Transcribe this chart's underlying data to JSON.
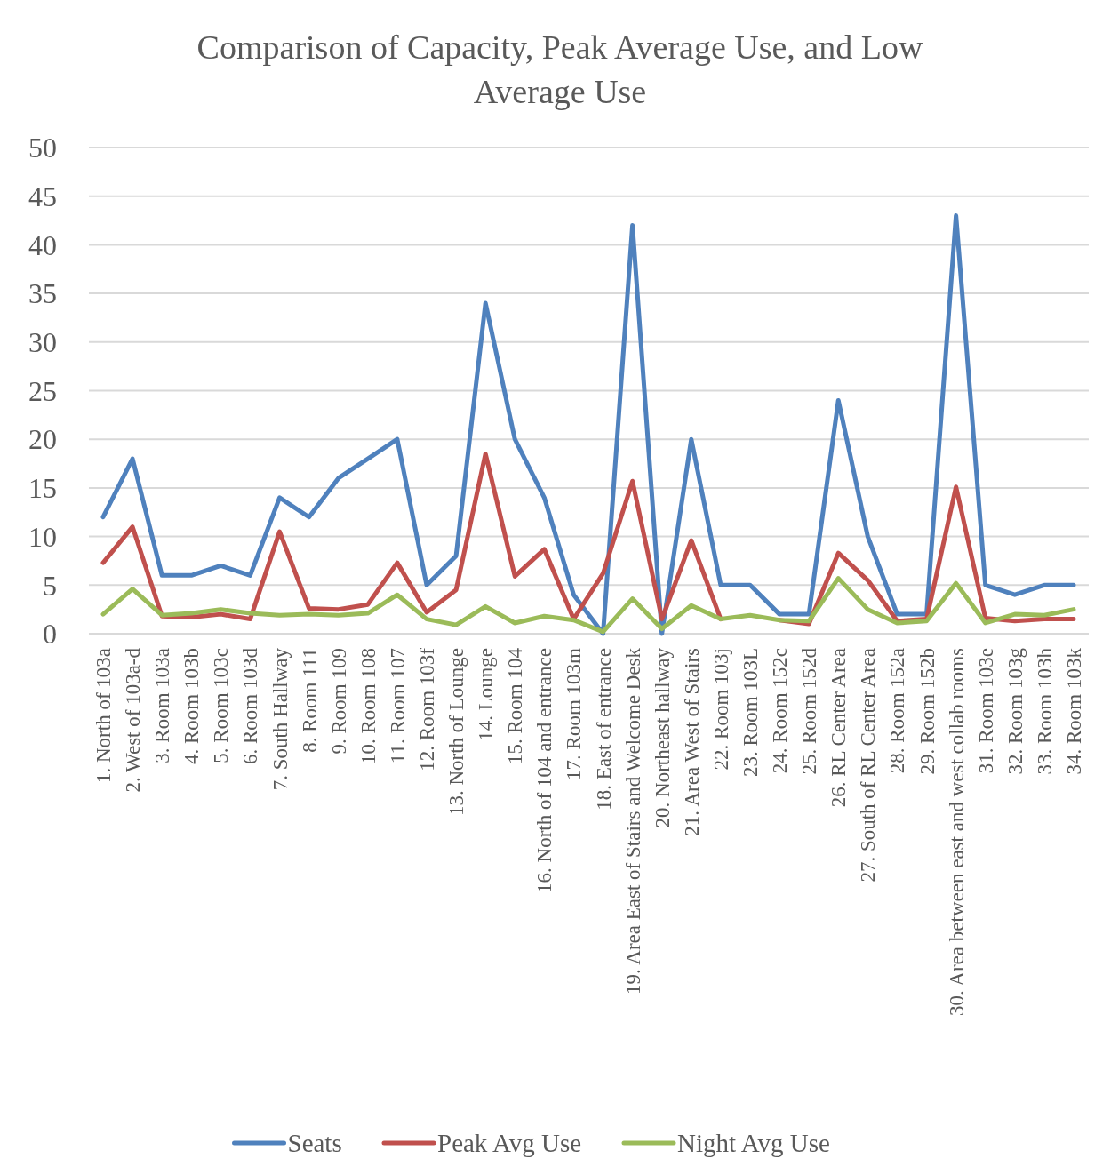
{
  "chart_data": {
    "type": "line",
    "title": "Comparison of Capacity, Peak Average Use, and Low Average Use",
    "categories": [
      "1. North of 103a",
      "2. West of 103a-d",
      "3. Room 103a",
      "4. Room 103b",
      "5. Room 103c",
      "6. Room 103d",
      "7. South Hallway",
      "8. Room 111",
      "9. Room 109",
      "10. Room 108",
      "11. Room 107",
      "12. Room 103f",
      "13. North of Lounge",
      "14. Lounge",
      "15. Room 104",
      "16. North of 104 and entrance",
      "17. Room 103m",
      "18. East of entrance",
      "19. Area East of Stairs and Welcome Desk",
      "20. Northeast hallway",
      "21. Area West of Stairs",
      "22. Room 103j",
      "23. Room 103L",
      "24. Room 152c",
      "25. Room 152d",
      "26. RL Center Area",
      "27. South of RL Center Area",
      "28. Room 152a",
      "29. Room 152b",
      "30. Area between east and west collab rooms",
      "31. Room 103e",
      "32. Room 103g",
      "33. Room 103h",
      "34. Room 103k"
    ],
    "series": [
      {
        "name": "Seats",
        "color": "#4f81bd",
        "values": [
          12,
          18,
          6,
          6,
          7,
          6,
          14,
          12,
          16,
          18,
          20,
          5,
          8,
          34,
          20,
          14,
          4,
          0,
          42,
          0,
          20,
          5,
          5,
          2,
          2,
          24,
          10,
          2,
          2,
          43,
          5,
          4,
          5,
          5
        ]
      },
      {
        "name": "Peak Avg Use",
        "color": "#c0504d",
        "values": [
          7.3,
          11,
          1.8,
          1.7,
          2.0,
          1.5,
          10.5,
          2.6,
          2.5,
          3.0,
          7.3,
          2.2,
          4.5,
          18.5,
          5.9,
          8.7,
          1.5,
          6.2,
          15.7,
          1.5,
          9.6,
          1.5,
          null,
          1.4,
          1.0,
          8.3,
          5.5,
          1.3,
          1.5,
          15.1,
          1.6,
          1.3,
          1.5,
          1.5
        ]
      },
      {
        "name": "Night Avg Use",
        "color": "#9bbb59",
        "values": [
          2.0,
          4.6,
          1.9,
          2.1,
          2.5,
          2.1,
          1.9,
          2.0,
          1.9,
          2.1,
          4.0,
          1.5,
          0.9,
          2.8,
          1.1,
          1.8,
          1.4,
          0.2,
          3.6,
          0.5,
          2.9,
          1.5,
          1.9,
          1.4,
          1.3,
          5.7,
          2.5,
          1.1,
          1.3,
          5.2,
          1.1,
          2.0,
          1.9,
          2.5
        ]
      }
    ],
    "ylim": [
      0,
      50
    ],
    "yticks": [
      0,
      5,
      10,
      15,
      20,
      25,
      30,
      35,
      40,
      45,
      50
    ],
    "grid": "y",
    "legend": "bottom",
    "marker": "none",
    "line_style": "solid"
  }
}
